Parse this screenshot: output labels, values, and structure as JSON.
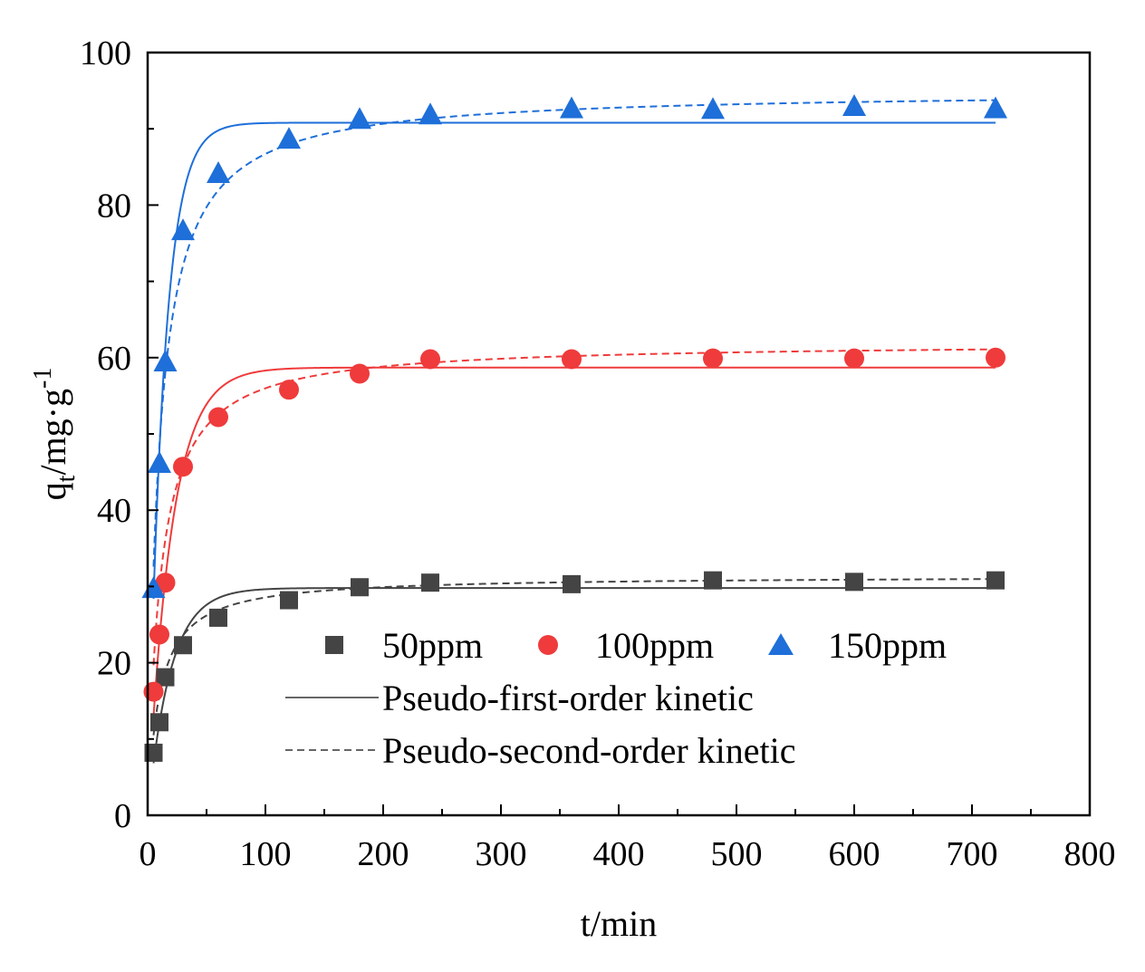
{
  "chart_data": {
    "type": "scatter",
    "xlabel": "t/min",
    "ylabel": {
      "base": "q",
      "sub": "t",
      "mid": "/mg·g",
      "sup": "-1"
    },
    "xlim": [
      0,
      800
    ],
    "ylim": [
      0,
      100
    ],
    "xticks": [
      0,
      100,
      200,
      300,
      400,
      500,
      600,
      700,
      800
    ],
    "yticks": [
      0,
      20,
      40,
      60,
      80,
      100
    ],
    "series": [
      {
        "name": "50ppm",
        "marker": "square",
        "color": "#444444",
        "x": [
          5,
          10,
          15,
          30,
          60,
          120,
          180,
          240,
          360,
          480,
          600,
          720
        ],
        "y": [
          8.2,
          12.2,
          18.1,
          22.3,
          25.9,
          28.2,
          29.9,
          30.5,
          30.3,
          30.8,
          30.6,
          30.8
        ],
        "pfo": {
          "qe": 29.8,
          "k1": 0.052
        },
        "pso": {
          "qe": 31.4,
          "k2": 0.0032
        }
      },
      {
        "name": "100ppm",
        "marker": "circle",
        "color": "#ef3b3b",
        "x": [
          5,
          10,
          15,
          30,
          60,
          120,
          180,
          240,
          360,
          480,
          600,
          720
        ],
        "y": [
          16.2,
          23.7,
          30.5,
          45.7,
          52.2,
          55.8,
          57.9,
          59.8,
          59.8,
          59.9,
          59.9,
          60.0
        ],
        "pfo": {
          "qe": 58.7,
          "k1": 0.05
        },
        "pso": {
          "qe": 62.0,
          "k2": 0.0015
        }
      },
      {
        "name": "150ppm",
        "marker": "triangle",
        "color": "#1e6fd9",
        "x": [
          5,
          10,
          15,
          30,
          60,
          120,
          180,
          240,
          360,
          480,
          600,
          720
        ],
        "y": [
          29.8,
          46.2,
          59.5,
          76.7,
          84.2,
          88.7,
          91.3,
          91.9,
          92.7,
          92.6,
          93.0,
          92.7
        ],
        "pfo": {
          "qe": 90.8,
          "k1": 0.075
        },
        "pso": {
          "qe": 95.0,
          "k2": 0.0011
        }
      }
    ],
    "legend": {
      "position": "bottom-right",
      "entries": [
        "50ppm",
        "100ppm",
        "150ppm"
      ],
      "line_entries": [
        {
          "label": "Pseudo-first-order kinetic",
          "style": "solid",
          "color": "#666666"
        },
        {
          "label": "Pseudo-second-order kinetic",
          "style": "dashed",
          "color": "#666666"
        }
      ]
    }
  }
}
